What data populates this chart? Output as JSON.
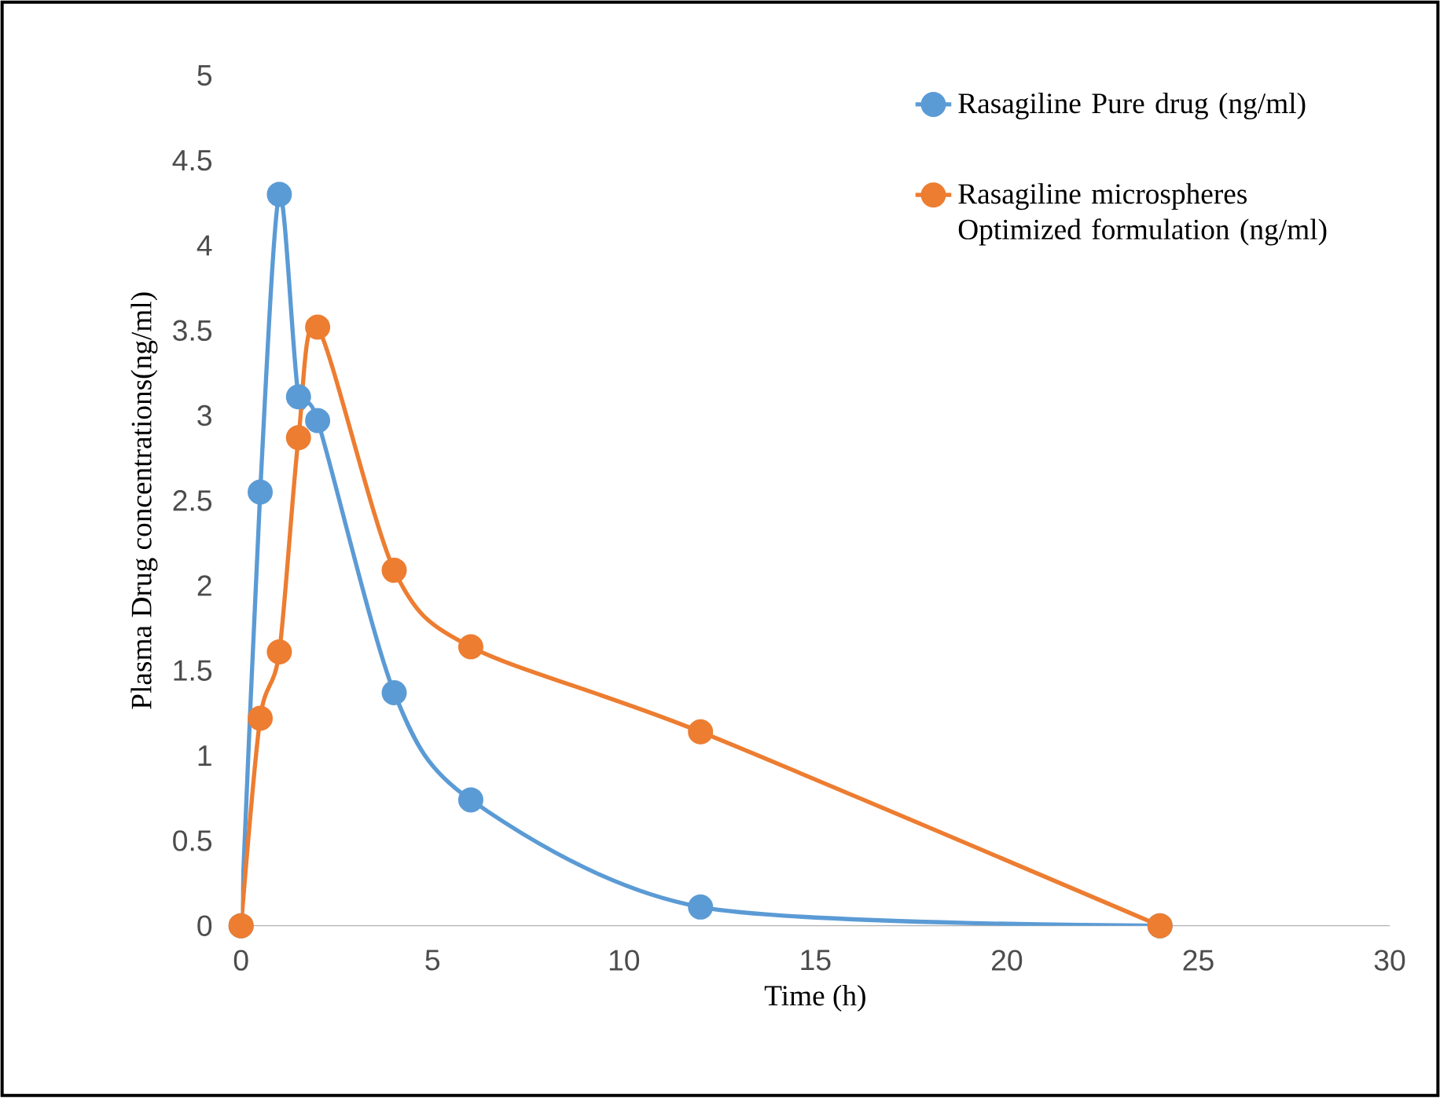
{
  "chart_data": {
    "type": "line",
    "xlabel": "Time (h)",
    "ylabel": "Plasma Drug concentrations(ng/ml)",
    "xlim": [
      0,
      30
    ],
    "xticks": [
      0,
      5,
      10,
      15,
      20,
      25,
      30
    ],
    "ylim": [
      0,
      5
    ],
    "yticks": [
      0,
      0.5,
      1,
      1.5,
      2,
      2.5,
      3,
      3.5,
      4,
      4.5,
      5
    ],
    "grid": false,
    "legend": "top right",
    "marker": "circle",
    "line_style": "solid",
    "series": [
      {
        "name": "Rasagiline Pure drug (ng/ml)",
        "color": "#5b9bd5",
        "x": [
          0,
          0.5,
          1,
          1.5,
          2,
          4,
          6,
          12,
          24
        ],
        "values": [
          0,
          2.55,
          4.3,
          3.11,
          2.97,
          1.37,
          0.74,
          0.11,
          0
        ]
      },
      {
        "name": "Rasagiline microspheres Optimized formulation (ng/ml)",
        "color": "#ed7d31",
        "x": [
          0,
          0.5,
          1,
          1.5,
          2,
          4,
          6,
          12,
          24
        ],
        "values": [
          0,
          1.22,
          1.61,
          2.87,
          3.52,
          2.09,
          1.64,
          1.14,
          0
        ]
      }
    ]
  }
}
